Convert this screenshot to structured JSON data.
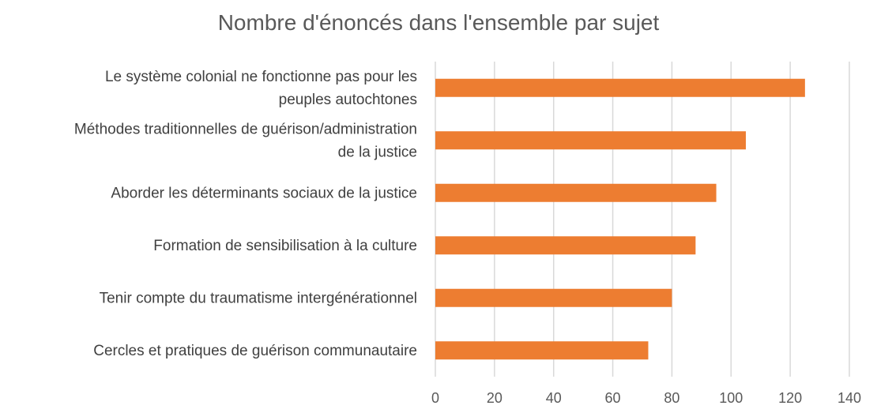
{
  "chart_data": {
    "type": "bar",
    "orientation": "horizontal",
    "title": "Nombre d'énoncés dans l'ensemble par sujet",
    "xlabel": "",
    "ylabel": "",
    "categories": [
      [
        "Le système colonial ne fonctionne pas pour les",
        "peuples autochtones"
      ],
      [
        "Méthodes traditionnelles de guérison/administration",
        "de la justice"
      ],
      [
        "Aborder les déterminants sociaux de la justice"
      ],
      [
        "Formation de sensibilisation à la culture"
      ],
      [
        "Tenir compte du traumatisme intergénérationnel"
      ],
      [
        "Cercles et pratiques de guérison communautaire"
      ]
    ],
    "values": [
      125,
      105,
      95,
      88,
      80,
      72
    ],
    "xlim": [
      0,
      140
    ],
    "xticks": [
      0,
      20,
      40,
      60,
      80,
      100,
      120,
      140
    ],
    "grid": true,
    "bar_color": "#ED7D31",
    "legend": "none"
  }
}
